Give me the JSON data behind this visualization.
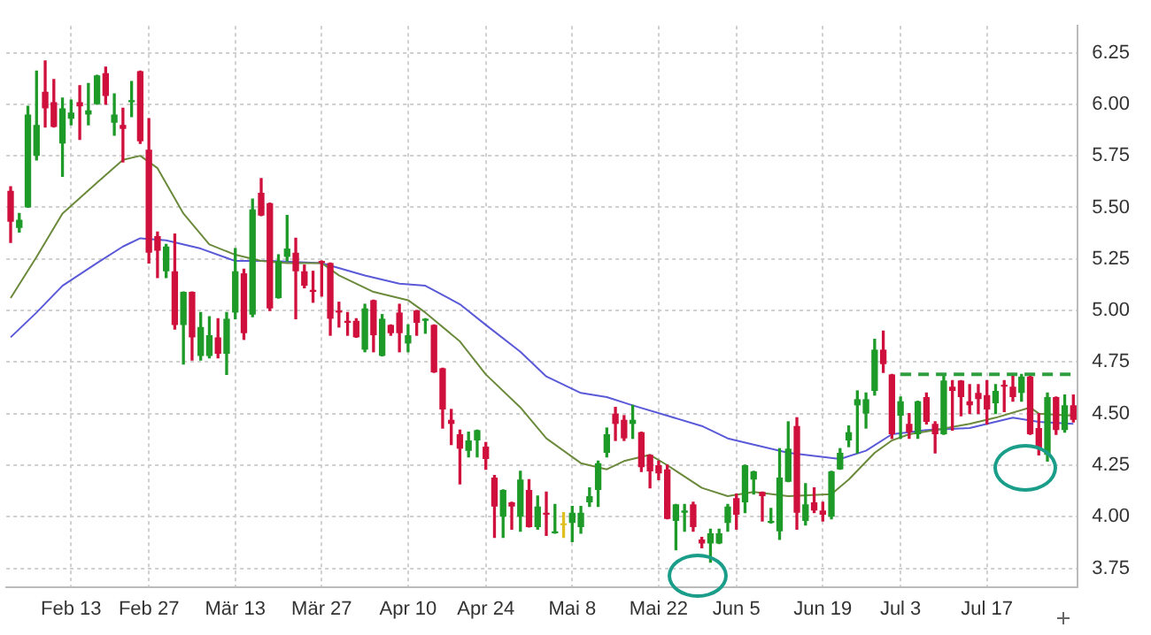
{
  "chart_data": {
    "type": "candlestick",
    "categories": [
      null,
      null,
      null,
      null,
      null,
      null,
      null,
      "Feb 13",
      null,
      null,
      null,
      null,
      null,
      null,
      null,
      null,
      "Feb 27",
      null,
      null,
      null,
      null,
      null,
      null,
      null,
      null,
      null,
      "Mär 13",
      null,
      null,
      null,
      null,
      null,
      null,
      null,
      null,
      null,
      "Mär 27",
      null,
      null,
      null,
      null,
      null,
      null,
      null,
      null,
      null,
      "Apr 10",
      null,
      null,
      null,
      null,
      null,
      null,
      null,
      null,
      "Apr 24",
      null,
      null,
      null,
      null,
      null,
      null,
      null,
      null,
      null,
      "Mai 8",
      null,
      null,
      null,
      null,
      null,
      null,
      null,
      null,
      null,
      "Mai 22",
      null,
      null,
      null,
      null,
      null,
      null,
      null,
      null,
      "Jun 5",
      null,
      null,
      null,
      null,
      null,
      null,
      null,
      null,
      null,
      "Jun 19",
      null,
      null,
      null,
      null,
      null,
      null,
      null,
      null,
      "Jul 3",
      null,
      null,
      null,
      null,
      null,
      null,
      null,
      null,
      null,
      "Jul 17",
      null,
      null,
      null,
      null,
      null,
      null,
      null,
      null,
      null,
      null
    ],
    "ohlc": [
      [
        5.58,
        5.6,
        5.33,
        5.43
      ],
      [
        5.4,
        5.47,
        5.38,
        5.44
      ],
      [
        5.5,
        5.99,
        5.5,
        5.95
      ],
      [
        5.75,
        6.16,
        5.73,
        5.9
      ],
      [
        6.06,
        6.21,
        5.89,
        5.98
      ],
      [
        6.01,
        6.12,
        5.89,
        5.89
      ],
      [
        5.81,
        6.03,
        5.65,
        5.98
      ],
      [
        5.93,
        6.02,
        5.9,
        5.96
      ],
      [
        6.01,
        6.09,
        5.83,
        5.99
      ],
      [
        5.95,
        6.1,
        5.9,
        5.97
      ],
      [
        6.0,
        6.14,
        6.0,
        6.14
      ],
      [
        6.15,
        6.18,
        6.0,
        6.04
      ],
      [
        5.91,
        6.05,
        5.85,
        5.95
      ],
      [
        5.9,
        5.98,
        5.72,
        5.88
      ],
      [
        6.01,
        6.11,
        5.94,
        6.02
      ],
      [
        6.16,
        6.16,
        5.81,
        5.82
      ],
      [
        5.78,
        5.93,
        5.23,
        5.28
      ],
      [
        5.36,
        5.38,
        5.16,
        5.29
      ],
      [
        5.19,
        5.32,
        5.16,
        5.31
      ],
      [
        5.19,
        5.37,
        4.91,
        4.93
      ],
      [
        4.93,
        5.09,
        4.74,
        5.09
      ],
      [
        5.09,
        5.09,
        4.76,
        4.87
      ],
      [
        4.78,
        4.99,
        4.76,
        4.92
      ],
      [
        4.78,
        4.97,
        4.77,
        4.88
      ],
      [
        4.87,
        4.96,
        4.77,
        4.79
      ],
      [
        4.79,
        4.99,
        4.69,
        4.96
      ],
      [
        4.99,
        5.3,
        4.96,
        5.19
      ],
      [
        5.18,
        5.2,
        4.86,
        4.89
      ],
      [
        4.98,
        5.54,
        4.97,
        5.49
      ],
      [
        5.57,
        5.64,
        5.46,
        5.46
      ],
      [
        5.52,
        5.52,
        5.0,
        5.01
      ],
      [
        5.06,
        5.27,
        5.06,
        5.24
      ],
      [
        5.26,
        5.46,
        5.24,
        5.3
      ],
      [
        5.28,
        5.35,
        4.96,
        5.19
      ],
      [
        5.19,
        5.22,
        5.11,
        5.12
      ],
      [
        5.1,
        5.19,
        5.04,
        5.09
      ],
      [
        5.24,
        5.24,
        5.07,
        5.23
      ],
      [
        5.23,
        5.23,
        4.88,
        4.96
      ],
      [
        5.0,
        5.04,
        4.92,
        4.99
      ],
      [
        4.95,
        4.99,
        4.88,
        4.94
      ],
      [
        4.95,
        4.96,
        4.87,
        4.87
      ],
      [
        4.81,
        5.03,
        4.8,
        5.01
      ],
      [
        5.05,
        5.05,
        4.8,
        4.88
      ],
      [
        4.78,
        4.98,
        4.78,
        4.96
      ],
      [
        4.93,
        4.93,
        4.88,
        4.89
      ],
      [
        4.99,
        5.03,
        4.8,
        4.89
      ],
      [
        4.84,
        4.93,
        4.8,
        4.88
      ],
      [
        5.0,
        5.0,
        4.88,
        4.94
      ],
      [
        4.95,
        4.96,
        4.89,
        4.96
      ],
      [
        4.93,
        4.93,
        4.7,
        4.7
      ],
      [
        4.72,
        4.72,
        4.43,
        4.52
      ],
      [
        4.47,
        4.52,
        4.35,
        4.45
      ],
      [
        4.4,
        4.42,
        4.16,
        4.33
      ],
      [
        4.32,
        4.41,
        4.29,
        4.37
      ],
      [
        4.37,
        4.42,
        4.29,
        4.42
      ],
      [
        4.34,
        4.36,
        4.23,
        4.28
      ],
      [
        4.19,
        4.2,
        3.9,
        4.05
      ],
      [
        4.0,
        4.13,
        3.9,
        4.13
      ],
      [
        4.07,
        4.07,
        3.94,
        4.05
      ],
      [
        4.0,
        4.22,
        3.93,
        4.18
      ],
      [
        4.13,
        4.18,
        3.95,
        3.95
      ],
      [
        3.95,
        4.1,
        3.94,
        4.05
      ],
      [
        4.02,
        4.12,
        3.91,
        4.01
      ],
      [
        3.92,
        4.06,
        3.92,
        3.93
      ],
      [
        3.96,
        4.02,
        3.9,
        3.96
      ],
      [
        3.97,
        4.05,
        3.88,
        4.02
      ],
      [
        3.95,
        4.05,
        3.92,
        4.02
      ],
      [
        4.07,
        4.14,
        4.05,
        4.1
      ],
      [
        4.13,
        4.27,
        4.05,
        4.26
      ],
      [
        4.31,
        4.43,
        4.29,
        4.4
      ],
      [
        4.5,
        4.53,
        4.37,
        4.45
      ],
      [
        4.47,
        4.49,
        4.37,
        4.38
      ],
      [
        4.45,
        4.54,
        4.38,
        4.47
      ],
      [
        4.41,
        4.41,
        4.22,
        4.24
      ],
      [
        4.3,
        4.3,
        4.14,
        4.22
      ],
      [
        4.25,
        4.27,
        4.18,
        4.21
      ],
      [
        4.23,
        4.25,
        3.99,
        3.99
      ],
      [
        3.98,
        4.06,
        3.84,
        4.06
      ],
      [
        4.02,
        4.06,
        3.93,
        4.03
      ],
      [
        4.06,
        4.07,
        3.93,
        3.95
      ],
      [
        3.89,
        3.9,
        3.85,
        3.87
      ],
      [
        3.87,
        3.94,
        3.78,
        3.92
      ],
      [
        3.87,
        3.94,
        3.87,
        3.92
      ],
      [
        3.97,
        4.06,
        3.93,
        4.05
      ],
      [
        4.09,
        4.11,
        3.94,
        4.01
      ],
      [
        4.07,
        4.25,
        4.02,
        4.25
      ],
      [
        4.18,
        4.22,
        4.11,
        4.22
      ],
      [
        4.12,
        4.12,
        3.98,
        4.1
      ],
      [
        3.97,
        4.04,
        3.97,
        3.98
      ],
      [
        3.93,
        4.33,
        3.89,
        4.19
      ],
      [
        4.17,
        4.46,
        4.17,
        4.33
      ],
      [
        4.44,
        4.48,
        3.94,
        4.02
      ],
      [
        3.98,
        4.16,
        3.96,
        4.06
      ],
      [
        4.07,
        4.14,
        4.02,
        4.03
      ],
      [
        4.03,
        4.07,
        3.98,
        4.01
      ],
      [
        4.0,
        4.22,
        3.99,
        4.22
      ],
      [
        4.23,
        4.33,
        4.23,
        4.31
      ],
      [
        4.37,
        4.44,
        4.34,
        4.41
      ],
      [
        4.54,
        4.61,
        4.31,
        4.57
      ],
      [
        4.5,
        4.6,
        4.43,
        4.57
      ],
      [
        4.61,
        4.86,
        4.59,
        4.81
      ],
      [
        4.81,
        4.9,
        4.7,
        4.74
      ],
      [
        4.69,
        4.69,
        4.38,
        4.4
      ],
      [
        4.49,
        4.58,
        4.38,
        4.56
      ],
      [
        4.45,
        4.5,
        4.38,
        4.41
      ],
      [
        4.4,
        4.56,
        4.38,
        4.56
      ],
      [
        4.58,
        4.6,
        4.45,
        4.46
      ],
      [
        4.45,
        4.46,
        4.31,
        4.4
      ],
      [
        4.4,
        4.68,
        4.4,
        4.66
      ],
      [
        4.63,
        4.66,
        4.42,
        4.61
      ],
      [
        4.66,
        4.66,
        4.49,
        4.58
      ],
      [
        4.56,
        4.64,
        4.5,
        4.54
      ],
      [
        4.6,
        4.64,
        4.5,
        4.57
      ],
      [
        4.59,
        4.66,
        4.45,
        4.52
      ],
      [
        4.55,
        4.64,
        4.5,
        4.61
      ],
      [
        4.64,
        4.66,
        4.51,
        4.63
      ],
      [
        4.63,
        4.68,
        4.56,
        4.58
      ],
      [
        4.6,
        4.69,
        4.56,
        4.68
      ],
      [
        4.68,
        4.68,
        4.4,
        4.4
      ],
      [
        4.43,
        4.5,
        4.3,
        4.33
      ],
      [
        4.3,
        4.6,
        4.27,
        4.58
      ],
      [
        4.58,
        4.58,
        4.4,
        4.42
      ],
      [
        4.42,
        4.59,
        4.41,
        4.54
      ],
      [
        4.54,
        4.59,
        4.46,
        4.47
      ]
    ],
    "colors": [
      "#d0103c",
      "#1e9a28",
      "#1e9a28",
      "#1e9a28",
      "#d0103c",
      "#d0103c",
      "#1e9a28",
      "#1e9a28",
      "#d0103c",
      "#1e9a28",
      "#1e9a28",
      "#d0103c",
      "#1e9a28",
      "#d0103c",
      "#1e9a28",
      "#d0103c",
      "#d0103c",
      "#d0103c",
      "#1e9a28",
      "#d0103c",
      "#1e9a28",
      "#d0103c",
      "#1e9a28",
      "#1e9a28",
      "#d0103c",
      "#1e9a28",
      "#1e9a28",
      "#d0103c",
      "#1e9a28",
      "#d0103c",
      "#d0103c",
      "#1e9a28",
      "#1e9a28",
      "#d0103c",
      "#d0103c",
      "#d0103c",
      "#d0103c",
      "#d0103c",
      "#d0103c",
      "#d0103c",
      "#d0103c",
      "#1e9a28",
      "#d0103c",
      "#1e9a28",
      "#d0103c",
      "#d0103c",
      "#1e9a28",
      "#d0103c",
      "#1e9a28",
      "#d0103c",
      "#d0103c",
      "#d0103c",
      "#d0103c",
      "#1e9a28",
      "#1e9a28",
      "#d0103c",
      "#d0103c",
      "#1e9a28",
      "#d0103c",
      "#1e9a28",
      "#d0103c",
      "#1e9a28",
      "#d0103c",
      "#1e9a28",
      "#e0c020",
      "#1e9a28",
      "#1e9a28",
      "#1e9a28",
      "#1e9a28",
      "#1e9a28",
      "#d0103c",
      "#d0103c",
      "#1e9a28",
      "#d0103c",
      "#d0103c",
      "#d0103c",
      "#d0103c",
      "#1e9a28",
      "#1e9a28",
      "#d0103c",
      "#d0103c",
      "#1e9a28",
      "#1e9a28",
      "#1e9a28",
      "#d0103c",
      "#1e9a28",
      "#1e9a28",
      "#d0103c",
      "#1e9a28",
      "#1e9a28",
      "#1e9a28",
      "#d0103c",
      "#1e9a28",
      "#d0103c",
      "#d0103c",
      "#1e9a28",
      "#1e9a28",
      "#1e9a28",
      "#1e9a28",
      "#1e9a28",
      "#1e9a28",
      "#d0103c",
      "#d0103c",
      "#1e9a28",
      "#d0103c",
      "#1e9a28",
      "#d0103c",
      "#d0103c",
      "#1e9a28",
      "#d0103c",
      "#d0103c",
      "#d0103c",
      "#d0103c",
      "#d0103c",
      "#1e9a28",
      "#d0103c",
      "#d0103c",
      "#1e9a28",
      "#d0103c",
      "#d0103c",
      "#1e9a28",
      "#d0103c",
      "#1e9a28",
      "#d0103c"
    ],
    "series": [
      {
        "type": "line",
        "color": "#6b8a3c",
        "values": [
          5.06,
          null,
          null,
          5.26,
          null,
          null,
          5.47,
          null,
          null,
          null,
          5.62,
          null,
          null,
          5.73,
          null,
          5.75,
          null,
          5.69,
          null,
          null,
          5.47,
          null,
          null,
          5.32,
          null,
          null,
          5.27,
          null,
          null,
          5.24,
          null,
          null,
          5.23,
          null,
          null,
          null,
          5.23,
          null,
          5.17,
          null,
          null,
          null,
          5.09,
          null,
          null,
          null,
          5.05,
          null,
          4.99,
          null,
          null,
          null,
          4.85,
          null,
          null,
          4.69,
          null,
          null,
          null,
          4.53,
          null,
          null,
          4.38,
          null,
          null,
          null,
          4.26,
          null,
          null,
          4.23,
          null,
          4.27,
          null,
          null,
          4.3,
          null,
          4.25,
          null,
          null,
          null,
          4.14,
          null,
          null,
          4.1,
          null,
          null,
          4.12,
          null,
          null,
          null,
          4.1,
          null,
          null,
          null,
          null,
          4.11,
          null,
          4.18,
          null,
          null,
          4.31,
          null,
          4.37,
          null,
          4.4,
          null,
          null,
          4.42,
          null,
          null,
          null,
          4.45,
          null,
          null,
          4.48,
          null,
          null,
          null,
          4.53,
          4.5,
          null,
          null,
          null,
          4.49
        ]
      },
      {
        "type": "line",
        "color": "#5a5ad8",
        "values": [
          4.87,
          null,
          null,
          4.99,
          null,
          null,
          5.12,
          null,
          null,
          null,
          5.23,
          null,
          null,
          5.31,
          null,
          5.35,
          null,
          null,
          5.34,
          null,
          null,
          null,
          5.3,
          null,
          null,
          null,
          5.24,
          null,
          null,
          null,
          5.24,
          null,
          null,
          null,
          null,
          null,
          5.23,
          null,
          null,
          null,
          null,
          5.17,
          null,
          null,
          null,
          5.13,
          null,
          null,
          5.12,
          null,
          null,
          null,
          5.03,
          null,
          null,
          4.93,
          null,
          null,
          null,
          4.8,
          null,
          null,
          4.68,
          null,
          null,
          null,
          4.6,
          null,
          null,
          4.58,
          null,
          null,
          4.54,
          null,
          null,
          null,
          4.49,
          null,
          null,
          null,
          4.44,
          null,
          null,
          4.38,
          null,
          null,
          4.35,
          null,
          null,
          null,
          4.31,
          null,
          null,
          null,
          null,
          null,
          4.28,
          null,
          null,
          4.32,
          null,
          null,
          4.4,
          null,
          null,
          null,
          4.42,
          null,
          null,
          null,
          null,
          4.43,
          null,
          null,
          null,
          null,
          4.48,
          null,
          null,
          4.46,
          null,
          null,
          null,
          4.45
        ]
      },
      {
        "type": "line",
        "color": "#2e9e3e",
        "line_style": "dashed",
        "values": [
          null,
          null,
          null,
          null,
          null,
          null,
          null,
          null,
          null,
          null,
          null,
          null,
          null,
          null,
          null,
          null,
          null,
          null,
          null,
          null,
          null,
          null,
          null,
          null,
          null,
          null,
          null,
          null,
          null,
          null,
          null,
          null,
          null,
          null,
          null,
          null,
          null,
          null,
          null,
          null,
          null,
          null,
          null,
          null,
          null,
          null,
          null,
          null,
          null,
          null,
          null,
          null,
          null,
          null,
          null,
          null,
          null,
          null,
          null,
          null,
          null,
          null,
          null,
          null,
          null,
          null,
          null,
          null,
          null,
          null,
          null,
          null,
          null,
          null,
          null,
          null,
          null,
          null,
          null,
          null,
          null,
          null,
          null,
          null,
          null,
          null,
          null,
          null,
          null,
          null,
          null,
          null,
          null,
          null,
          null,
          null,
          null,
          null,
          null,
          null,
          null,
          null,
          null,
          4.69,
          4.69,
          4.69,
          4.69,
          4.69,
          4.69,
          4.69,
          4.69,
          4.69,
          4.69,
          4.69,
          4.69,
          4.69,
          4.69,
          4.69,
          4.69,
          4.69,
          4.69,
          4.69,
          4.69,
          4.69
        ]
      }
    ],
    "ylim": [
      3.66,
      6.38
    ],
    "yticks": [
      3.75,
      {
        "value": 4,
        "label": "4.00"
      },
      4.25,
      {
        "value": 4.5,
        "label": "4.50"
      },
      4.75,
      {
        "value": 5,
        "label": "5.00"
      },
      5.25,
      {
        "value": 5.5,
        "label": "5.50"
      },
      5.75,
      {
        "value": 6,
        "label": "6.00"
      },
      6.25
    ],
    "grid": true,
    "legend": false,
    "marker": "none"
  }
}
